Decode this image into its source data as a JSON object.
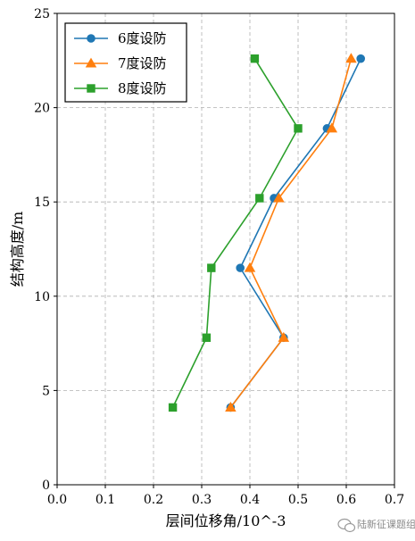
{
  "chart_data": {
    "type": "line",
    "xlabel": "层间位移角/10^-3",
    "ylabel": "结构高度/m",
    "xlim": [
      0,
      0.7
    ],
    "ylim": [
      0,
      25
    ],
    "xticks": [
      "0.0",
      "0.1",
      "0.2",
      "0.3",
      "0.4",
      "0.5",
      "0.6",
      "0.7"
    ],
    "yticks": [
      "0",
      "5",
      "10",
      "15",
      "20",
      "25"
    ],
    "grid": true,
    "legend_position": "top-left",
    "series": [
      {
        "name": "6度设防",
        "color": "#1f77b4",
        "marker": "circle",
        "points": [
          {
            "x": 0.36,
            "y": 4.1
          },
          {
            "x": 0.47,
            "y": 7.8
          },
          {
            "x": 0.38,
            "y": 11.5
          },
          {
            "x": 0.45,
            "y": 15.2
          },
          {
            "x": 0.56,
            "y": 18.9
          },
          {
            "x": 0.63,
            "y": 22.6
          }
        ]
      },
      {
        "name": "7度设防",
        "color": "#ff7f0e",
        "marker": "triangle",
        "points": [
          {
            "x": 0.36,
            "y": 4.1
          },
          {
            "x": 0.47,
            "y": 7.8
          },
          {
            "x": 0.4,
            "y": 11.5
          },
          {
            "x": 0.46,
            "y": 15.2
          },
          {
            "x": 0.57,
            "y": 18.9
          },
          {
            "x": 0.61,
            "y": 22.6
          }
        ]
      },
      {
        "name": "8度设防",
        "color": "#2ca02c",
        "marker": "square",
        "points": [
          {
            "x": 0.24,
            "y": 4.1
          },
          {
            "x": 0.31,
            "y": 7.8
          },
          {
            "x": 0.32,
            "y": 11.5
          },
          {
            "x": 0.42,
            "y": 15.2
          },
          {
            "x": 0.5,
            "y": 18.9
          },
          {
            "x": 0.41,
            "y": 22.6
          }
        ]
      }
    ]
  },
  "watermark": {
    "text": "陆新征课题组",
    "icon": "wechat-icon"
  }
}
